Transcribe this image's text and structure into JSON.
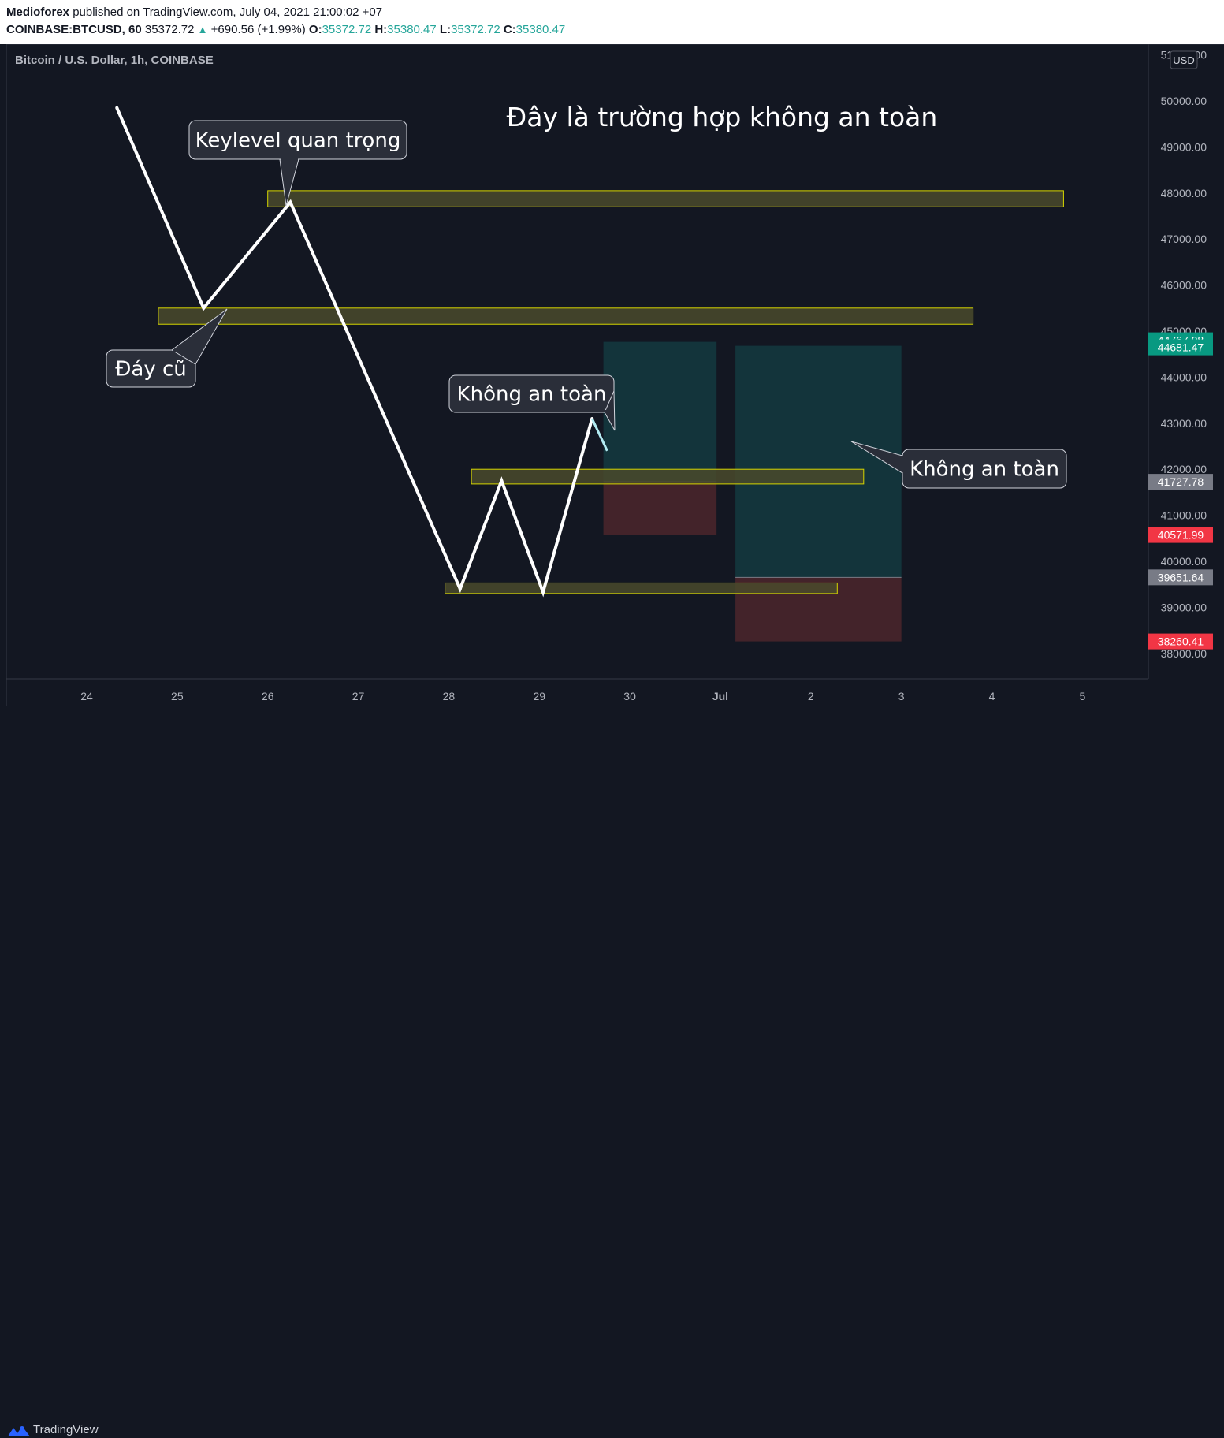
{
  "header": {
    "author": "Medioforex",
    "published": "published on TradingView.com, July 04, 2021 21:00:02 +07",
    "symbol": "COINBASE:BTCUSD, 60",
    "last": "35372.72",
    "change": "+690.56 (+1.99%)",
    "o_label": "O:",
    "o_val": "35372.72",
    "h_label": "H:",
    "h_val": "35380.47",
    "l_label": "L:",
    "l_val": "35372.72",
    "c_label": "C:",
    "c_val": "35380.47"
  },
  "footer": {
    "brand": "TradingView"
  },
  "chart_data": {
    "type": "line",
    "title": "Đây là trường hợp không an toàn",
    "series_label": "Bitcoin / U.S. Dollar, 1h, COINBASE",
    "currency_badge": "USD",
    "x_ticks": [
      "24",
      "25",
      "26",
      "27",
      "28",
      "29",
      "30",
      "Jul",
      "2",
      "3",
      "4",
      "5"
    ],
    "y_ticks": [
      "38000.00",
      "39000.00",
      "40000.00",
      "41000.00",
      "42000.00",
      "43000.00",
      "44000.00",
      "45000.00",
      "46000.00",
      "47000.00",
      "48000.00",
      "49000.00",
      "50000.00",
      "51000.00"
    ],
    "ylim": [
      37750,
      51150
    ],
    "path": [
      {
        "x": "Jun 24 08:00",
        "y": 49850
      },
      {
        "x": "Jun 25 07:00",
        "y": 45500
      },
      {
        "x": "Jun 26 06:00",
        "y": 47800
      },
      {
        "x": "Jun 28 03:00",
        "y": 39400
      },
      {
        "x": "Jun 28 14:00",
        "y": 41750
      },
      {
        "x": "Jun 29 01:00",
        "y": 39330
      },
      {
        "x": "Jun 29 14:00",
        "y": 43100
      }
    ],
    "tail": [
      {
        "x": "Jun 29 14:00",
        "y": 43100
      },
      {
        "x": "Jun 29 18:00",
        "y": 42400
      }
    ],
    "zones": [
      {
        "from": "Jun 26",
        "to": "Jul 4 19:00",
        "low": 47700,
        "high": 48050
      },
      {
        "from": "Jun 24 19:00",
        "to": "Jul 3 19:00",
        "low": 45150,
        "high": 45500
      },
      {
        "from": "Jun 28 06:00",
        "to": "Jul 2 14:00",
        "low": 41680,
        "high": 42000
      },
      {
        "from": "Jun 27 23:00",
        "to": "Jul 2 07:00",
        "low": 39300,
        "high": 39530
      }
    ],
    "positions": [
      {
        "from": "Jun 29 17:00",
        "to": "Jun 30 23:00",
        "target": 44767.08,
        "entry": 41727.78,
        "stop": 40571.99
      },
      {
        "from": "Jul 1 04:00",
        "to": "Jul 3",
        "target": 44681.47,
        "entry": 39651.64,
        "stop": 38260.41
      }
    ],
    "price_labels": [
      {
        "value": 44767.08,
        "text": "44767.08",
        "color": "#089981"
      },
      {
        "value": 44681.47,
        "text": "44681.47",
        "color": "#089981"
      },
      {
        "value": 41727.78,
        "text": "41727.78",
        "color": "#787b86"
      },
      {
        "value": 40571.99,
        "text": "40571.99",
        "color": "#f23645"
      },
      {
        "value": 39651.64,
        "text": "39651.64",
        "color": "#787b86"
      },
      {
        "value": 38260.41,
        "text": "38260.41",
        "color": "#f23645"
      }
    ],
    "callouts": [
      {
        "text": "Keylevel quan trọng"
      },
      {
        "text": "Đáy cũ"
      },
      {
        "text": "Không an toàn"
      },
      {
        "text": "Không an toàn"
      }
    ],
    "colors": {
      "background": "#131722",
      "line": "#ffffff",
      "zone_fill": "#4a4a2c",
      "zone_border": "#d6d600",
      "target_fill": "#13343b",
      "stop_fill": "#43232a"
    }
  }
}
